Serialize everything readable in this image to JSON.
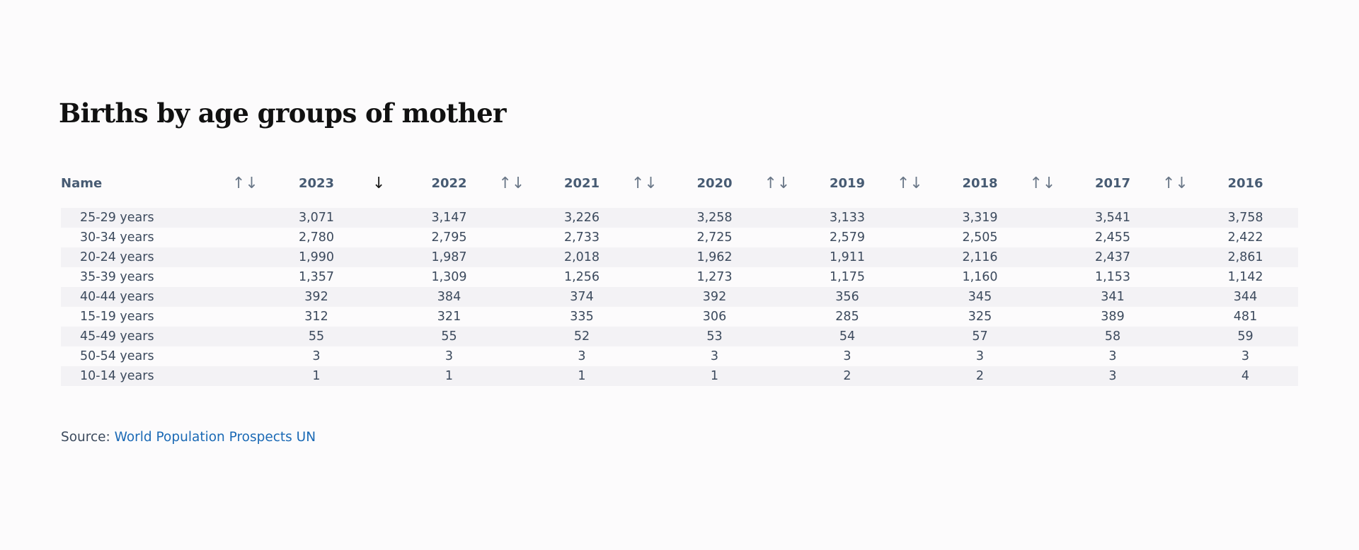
{
  "title": "Births by age groups of mother",
  "table": {
    "name_header": "Name",
    "columns": [
      "2023",
      "2022",
      "2021",
      "2020",
      "2019",
      "2018",
      "2017",
      "2016"
    ],
    "sorted_column": "2023",
    "sort_direction": "descending",
    "sort_icons": {
      "unsorted": "↑↓",
      "descending": "↓",
      "truncated": "↑."
    },
    "rows": [
      {
        "name": "25-29 years",
        "values": [
          "3,071",
          "3,147",
          "3,226",
          "3,258",
          "3,133",
          "3,319",
          "3,541",
          "3,758"
        ]
      },
      {
        "name": "30-34 years",
        "values": [
          "2,780",
          "2,795",
          "2,733",
          "2,725",
          "2,579",
          "2,505",
          "2,455",
          "2,422"
        ]
      },
      {
        "name": "20-24 years",
        "values": [
          "1,990",
          "1,987",
          "2,018",
          "1,962",
          "1,911",
          "2,116",
          "2,437",
          "2,861"
        ]
      },
      {
        "name": "35-39 years",
        "values": [
          "1,357",
          "1,309",
          "1,256",
          "1,273",
          "1,175",
          "1,160",
          "1,153",
          "1,142"
        ]
      },
      {
        "name": "40-44 years",
        "values": [
          "392",
          "384",
          "374",
          "392",
          "356",
          "345",
          "341",
          "344"
        ]
      },
      {
        "name": "15-19 years",
        "values": [
          "312",
          "321",
          "335",
          "306",
          "285",
          "325",
          "389",
          "481"
        ]
      },
      {
        "name": "45-49 years",
        "values": [
          "55",
          "55",
          "52",
          "53",
          "54",
          "57",
          "58",
          "59"
        ]
      },
      {
        "name": "50-54 years",
        "values": [
          "3",
          "3",
          "3",
          "3",
          "3",
          "3",
          "3",
          "3"
        ]
      },
      {
        "name": "10-14 years",
        "values": [
          "1",
          "1",
          "1",
          "1",
          "2",
          "2",
          "3",
          "4"
        ]
      }
    ]
  },
  "source": {
    "prefix": "Source: ",
    "link_text": "World Population Prospects UN"
  },
  "colors": {
    "header_text": "#475b73",
    "body_text": "#3c4a5d",
    "link": "#1a69b5",
    "stripe": "#f3f2f5",
    "background": "#fcfbfc"
  }
}
